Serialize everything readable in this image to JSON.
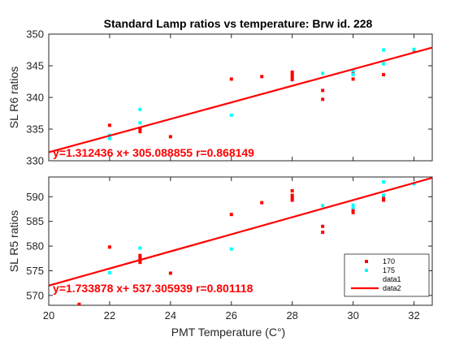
{
  "chart_data": {
    "title": "Standard Lamp ratios vs temperature: Brw id. 228",
    "xlabel": "PMT Temperature (C°)",
    "subplots": [
      {
        "type": "scatter",
        "ylabel": "SL R6 ratios",
        "xlim": [
          20,
          32.6
        ],
        "ylim": [
          330,
          350
        ],
        "xticks": [
          20,
          22,
          24,
          26,
          28,
          30,
          32
        ],
        "yticks": [
          330,
          335,
          340,
          345,
          350
        ],
        "equation": "y=1.312436 x+ 305.088855 r=0.868149",
        "fit": {
          "slope": 1.312436,
          "intercept": 305.088855
        },
        "series": [
          {
            "name": "170",
            "color": "#ff0000",
            "points": [
              [
                22,
                335.6
              ],
              [
                23,
                334.6
              ],
              [
                23,
                335.1
              ],
              [
                24,
                333.8
              ],
              [
                26,
                342.9
              ],
              [
                27,
                343.3
              ],
              [
                28,
                342.8
              ],
              [
                28,
                343.2
              ],
              [
                28,
                343.6
              ],
              [
                28,
                344.0
              ],
              [
                29,
                341.1
              ],
              [
                29,
                339.7
              ],
              [
                30,
                342.9
              ],
              [
                30,
                343.8
              ],
              [
                31,
                343.6
              ],
              [
                32,
                347.5
              ]
            ]
          },
          {
            "name": "175",
            "color": "#00ffff",
            "points": [
              [
                22,
                333.5
              ],
              [
                22,
                334.0
              ],
              [
                23,
                336.0
              ],
              [
                23,
                338.1
              ],
              [
                26,
                337.2
              ],
              [
                29,
                343.8
              ],
              [
                30,
                343.6
              ],
              [
                30,
                344.2
              ],
              [
                31,
                345.3
              ],
              [
                31,
                347.5
              ],
              [
                32,
                347.6
              ]
            ]
          }
        ]
      },
      {
        "type": "scatter",
        "ylabel": "SL R5 ratios",
        "xlim": [
          20,
          32.6
        ],
        "ylim": [
          568,
          594
        ],
        "xticks": [
          20,
          22,
          24,
          26,
          28,
          30,
          32
        ],
        "yticks": [
          570,
          575,
          580,
          585,
          590
        ],
        "equation": "y=1.733878 x+ 537.305939 r=0.801118",
        "fit": {
          "slope": 1.733878,
          "intercept": 537.305939
        },
        "series": [
          {
            "name": "170",
            "color": "#ff0000",
            "points": [
              [
                21,
                568.2
              ],
              [
                22,
                579.8
              ],
              [
                23,
                576.7
              ],
              [
                23,
                577.2
              ],
              [
                23,
                577.7
              ],
              [
                23,
                578.1
              ],
              [
                24,
                574.5
              ],
              [
                26,
                586.4
              ],
              [
                27,
                588.8
              ],
              [
                28,
                589.3
              ],
              [
                28,
                589.8
              ],
              [
                28,
                590.3
              ],
              [
                28,
                591.2
              ],
              [
                29,
                584.0
              ],
              [
                29,
                582.8
              ],
              [
                30,
                586.8
              ],
              [
                30,
                587.4
              ],
              [
                31,
                589.3
              ],
              [
                31,
                589.8
              ]
            ]
          },
          {
            "name": "175",
            "color": "#00ffff",
            "points": [
              [
                22,
                574.6
              ],
              [
                23,
                579.6
              ],
              [
                26,
                579.4
              ],
              [
                29,
                588.2
              ],
              [
                30,
                587.8
              ],
              [
                30,
                588.3
              ],
              [
                31,
                590.3
              ],
              [
                31,
                593.0
              ],
              [
                32,
                592.6
              ]
            ]
          }
        ]
      }
    ],
    "legend": {
      "placement": "bottom-right",
      "entries": [
        "170",
        "175",
        "data1",
        "data2"
      ]
    },
    "fit_color": "#ff0000"
  }
}
